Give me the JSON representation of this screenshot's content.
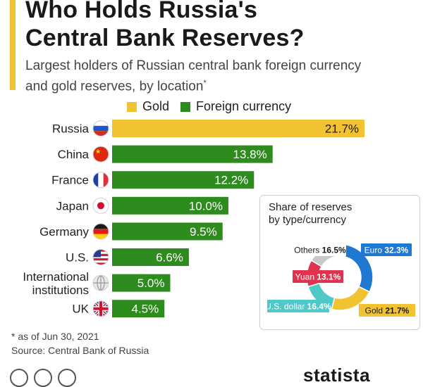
{
  "header": {
    "title_line1": "Who Holds Russia's",
    "title_line2": "Central Bank Reserves?",
    "subtitle_line1": "Largest holders of Russian central bank foreign currency",
    "subtitle_line2": "and gold reserves, by location",
    "subtitle_mark": "*"
  },
  "legend": {
    "gold": "Gold",
    "foreign": "Foreign currency"
  },
  "colors": {
    "gold": "#f1c232",
    "foreign": "#2e8b1e",
    "accent": "#f1c232"
  },
  "chart_data": [
    {
      "type": "bar",
      "orientation": "horizontal",
      "categories": [
        "Russia",
        "China",
        "France",
        "Japan",
        "Germany",
        "U.S.",
        "International institutions",
        "UK"
      ],
      "category_lines": [
        [
          "Russia"
        ],
        [
          "China"
        ],
        [
          "France"
        ],
        [
          "Japan"
        ],
        [
          "Germany"
        ],
        [
          "U.S."
        ],
        [
          "International",
          "institutions"
        ],
        [
          "UK"
        ]
      ],
      "flags": [
        "russia-flag-icon",
        "china-flag-icon",
        "france-flag-icon",
        "japan-flag-icon",
        "germany-flag-icon",
        "us-flag-icon",
        "globe-icon",
        "uk-flag-icon"
      ],
      "values": [
        21.7,
        13.8,
        12.2,
        10.0,
        9.5,
        6.6,
        5.0,
        4.5
      ],
      "labels": [
        "21.7%",
        "13.8%",
        "12.2%",
        "10.0%",
        "9.5%",
        "6.6%",
        "5.0%",
        "4.5%"
      ],
      "bar_types": [
        "gold",
        "foreign",
        "foreign",
        "foreign",
        "foreign",
        "foreign",
        "foreign",
        "foreign"
      ],
      "xlim": [
        0,
        24
      ],
      "legend": [
        "Gold",
        "Foreign currency"
      ],
      "legend_position": "top"
    },
    {
      "type": "pie",
      "variant": "donut",
      "title_line1": "Share of reserves",
      "title_line2": "by type/currency",
      "slices": [
        {
          "name": "Euro",
          "value": 32.3,
          "label": "32.3%",
          "color": "#1f78d1"
        },
        {
          "name": "Gold",
          "value": 21.7,
          "label": "21.7%",
          "color": "#f1c232"
        },
        {
          "name": "U.S. dollar",
          "value": 16.4,
          "label": "16.4%",
          "color": "#4fc8c8"
        },
        {
          "name": "Yuan",
          "value": 13.1,
          "label": "13.1%",
          "color": "#e0334f"
        },
        {
          "name": "Others",
          "value": 16.5,
          "label": "16.5%",
          "color": "#c8c8c8"
        }
      ]
    }
  ],
  "footer": {
    "footnote": "* as of Jun 30, 2021",
    "source": "Source: Central Bank of Russia",
    "brand": "statista"
  }
}
